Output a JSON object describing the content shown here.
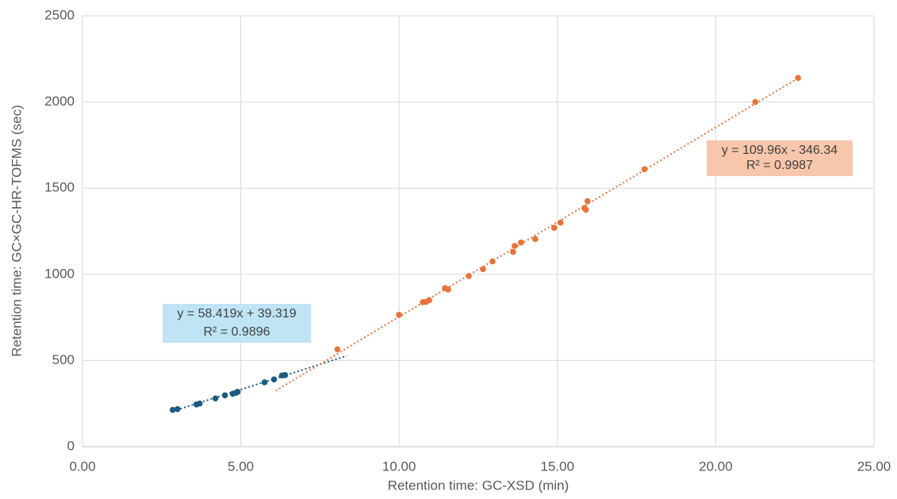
{
  "chart_data": {
    "type": "scatter",
    "x_label": "Retention time: GC-XSD (min)",
    "y_label": "Retention time: GC×GC-HR-TOFMS (sec)",
    "xlim": [
      0,
      25
    ],
    "ylim": [
      0,
      2500
    ],
    "xticks": [
      {
        "value": 0,
        "label": "0.00"
      },
      {
        "value": 5,
        "label": "5.00"
      },
      {
        "value": 10,
        "label": "10.00"
      },
      {
        "value": 15,
        "label": "15.00"
      },
      {
        "value": 20,
        "label": "20.00"
      },
      {
        "value": 25,
        "label": "25.00"
      }
    ],
    "yticks": [
      0,
      500,
      1000,
      1500,
      2000,
      2500
    ],
    "grid": true,
    "series": [
      {
        "color": "#1c5b7f",
        "x": [
          2.85,
          3.0,
          3.6,
          3.7,
          4.2,
          4.5,
          4.75,
          4.85,
          4.9,
          5.75,
          6.05,
          6.3,
          6.4
        ],
        "values": [
          213,
          218,
          245,
          250,
          280,
          298,
          307,
          313,
          318,
          373,
          390,
          413,
          415
        ],
        "trendline": {
          "slope": 58.419,
          "intercept": 39.319,
          "x_range": [
            2.85,
            8.35
          ],
          "equation": "y = 58.419x + 39.319",
          "r_squared": "R² = 0.9896",
          "box_color": "#bfe4f5"
        }
      },
      {
        "color": "#e8733a",
        "x": [
          8.05,
          10.0,
          10.75,
          10.85,
          10.95,
          11.45,
          11.55,
          12.2,
          12.65,
          12.95,
          13.6,
          13.65,
          13.85,
          14.3,
          14.9,
          15.1,
          15.85,
          15.9,
          15.95,
          17.75,
          21.25,
          22.6
        ],
        "values": [
          565,
          765,
          838,
          840,
          850,
          920,
          912,
          990,
          1030,
          1075,
          1130,
          1165,
          1185,
          1205,
          1270,
          1300,
          1385,
          1375,
          1425,
          1610,
          2000,
          2140
        ],
        "trendline": {
          "slope": 109.96,
          "intercept": -346.34,
          "x_range": [
            6.1,
            22.6
          ],
          "equation": "y = 109.96x - 346.34",
          "r_squared": "R² = 0.9987",
          "box_color": "#f8c6aa"
        }
      }
    ]
  }
}
